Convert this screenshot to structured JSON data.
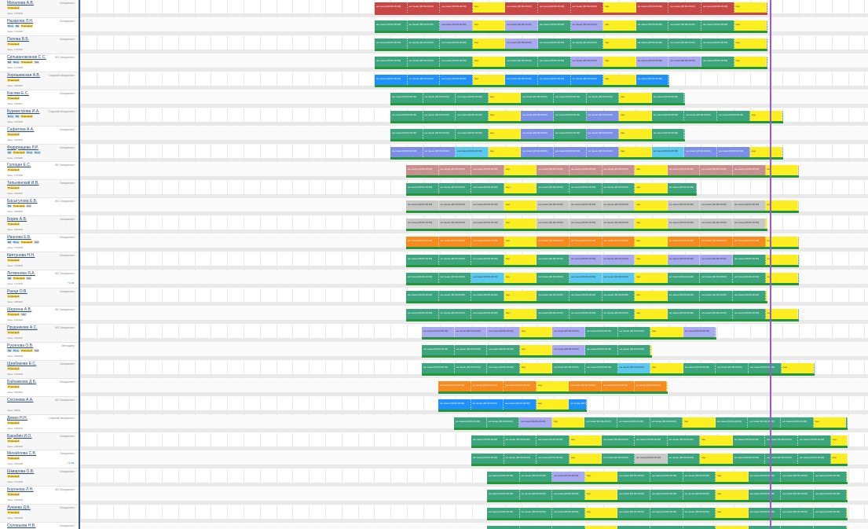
{
  "colors": {
    "green": "#3da57e",
    "green_dark": "#23963a",
    "red": "#c94646",
    "yellow": "#fcee21",
    "lavender": "#a8a9f0",
    "periwinkle": "#7b8fe6",
    "blue": "#1e90ff",
    "cyan": "#5bc8f0",
    "rose": "#c98f8f",
    "gray": "#c8c8c8",
    "orange": "#f98b1e",
    "navy": "#1818c8",
    "now_line": "#9b59d0"
  },
  "employees": [
    {
      "name": "Михалева А.В.",
      "role": "Специалист",
      "tags": [
        "Плановый"
      ],
      "sub": "Часы: 176/169"
    },
    {
      "name": "Назарова Л.Н.",
      "role": "Специалист",
      "tags": [
        "Вход",
        "ВД",
        "Плановый"
      ],
      "sub": "Часы: 174/168"
    },
    {
      "name": "Попова В.Б.",
      "role": "Специалист",
      "tags": [
        "Плановый"
      ],
      "sub": "Часы: 176/169"
    },
    {
      "name": "Сильвановскная С.С.",
      "role": "ИО Специалист",
      "tags": [
        "ВД",
        "Вход",
        "Плановый",
        "Час"
      ],
      "sub": "Часы: 171/168"
    },
    {
      "name": "Хорошевская А.В.",
      "role": "Старший специалист",
      "tags": [
        "Плановый"
      ],
      "sub": "Часы: 168/160"
    },
    {
      "name": "Басова Е.С.",
      "role": "Специалист",
      "tags": [
        "Плановый"
      ],
      "sub": "Часы: 168/167"
    },
    {
      "name": "Бурмистрова И.А.",
      "role": "Старший специалист",
      "tags": [
        "Вход",
        "ВД",
        "Плановый"
      ],
      "sub": "Часы: 170/168"
    },
    {
      "name": "Сафатова А.А.",
      "role": "Специалист",
      "tags": [
        "Плановый"
      ],
      "sub": "Часы: 166/160"
    },
    {
      "name": "Федорищева Л.Р.",
      "role": "Специалист",
      "tags": [
        "ВД",
        "Плановый",
        "Вход",
        "Вход"
      ],
      "sub": "Часы: 170/168"
    },
    {
      "name": "Голоцан Е.С.",
      "role": "ИО Специалист",
      "tags": [
        "Плановый"
      ],
      "sub": "Часы: 175/168"
    },
    {
      "name": "Тельнянский И.В.",
      "role": "Специалист",
      "tags": [
        "Плановый"
      ],
      "sub": "Часы: 160/159"
    },
    {
      "name": "Басыгулова Е.В.",
      "role": "ИО Специалист",
      "tags": [
        "ВД",
        "Плановый",
        "Час"
      ],
      "sub": "Часы: 168/166"
    },
    {
      "name": "Борин А.В.",
      "role": "Специалист",
      "tags": [
        "Плановый"
      ],
      "sub": "Часы: 168/168"
    },
    {
      "name": "Иванова Е.Б.",
      "role": "Специалист",
      "tags": [
        "ВД",
        "Вход",
        "Плановый",
        "Час"
      ],
      "sub": "Часы: 170/168"
    },
    {
      "name": "Квятунова Н.Н.",
      "role": "Специалист",
      "tags": [
        "Плановый"
      ],
      "sub": "Часы: 170/168"
    },
    {
      "name": "Литвинова Я.А.",
      "role": "ИО Специалист",
      "tags": [
        "ВД",
        "Плановый",
        "Час"
      ],
      "sub": "Часы: 171/169",
      "more": "+1 св."
    },
    {
      "name": "Раецн О.В.",
      "role": "Специалист",
      "tags": [
        "Плановый"
      ],
      "sub": "Часы: 168/168"
    },
    {
      "name": "Шкурина А.В.",
      "role": "ИО Специалист",
      "tags": [
        "Плановый",
        "Час"
      ],
      "sub": "Часы: 162/160"
    },
    {
      "name": "Прудникова А.С.",
      "role": "ИО Специалист",
      "tags": [
        "Плановый"
      ],
      "sub": "Часы: 166/166"
    },
    {
      "name": "Русинова О.В.",
      "role": "Менеджер",
      "tags": [
        "ВД",
        "Вход",
        "Плановый",
        "Час"
      ],
      "sub": "Часы: 168/168"
    },
    {
      "name": "Щербакова Е.С.",
      "role": "Специалист",
      "tags": [
        "Плановый"
      ],
      "sub": "Часы: 170/168"
    },
    {
      "name": "Байзаккова Д.Б.",
      "role": "Специалист",
      "tags": [
        "Плановый"
      ],
      "sub": "Часы: 150/152"
    },
    {
      "name": "Сосонова А.А.",
      "role": "ИО Специалист",
      "tags": [],
      "sub": "Часы: 96/96"
    },
    {
      "name": "Демко Н.Н.",
      "role": "Старший специалист",
      "tags": [
        "Плановый"
      ],
      "sub": "Часы: 168/166"
    },
    {
      "name": "Барабин И.О.",
      "role": "Специалист",
      "tags": [
        "Плановый"
      ],
      "sub": "Часы: 168/168"
    },
    {
      "name": "Михайлова С.В.",
      "role": "Специалист",
      "tags": [
        "Плановый"
      ],
      "sub": "Часы: 166/168",
      "more": "+1 св."
    },
    {
      "name": "Шкварова О.В.",
      "role": "Специалист",
      "tags": [
        "Плановый"
      ],
      "sub": "Часы: 172/168"
    },
    {
      "name": "Боронова Л.Н.",
      "role": "ИО Специалист",
      "tags": [
        "Плановый"
      ],
      "sub": "Часы: 168/168"
    },
    {
      "name": "Лукаева Д.Б.",
      "role": "Специалист",
      "tags": [
        "Плановый"
      ],
      "sub": "Часы: 168/168"
    },
    {
      "name": "Соловьева Н.В.",
      "role": "Специалист",
      "tags": [
        "Плановый"
      ],
      "sub": "Часы: 168/168"
    }
  ],
  "shift_label": "на линии [00:00-00:00]",
  "pause_label": "пер.",
  "rows": [
    {
      "start": 375,
      "end": 875,
      "base": "red",
      "under": "red_under",
      "mix": []
    },
    {
      "start": 375,
      "end": 875,
      "base": "green",
      "mix": [
        [
          "lavender",
          420,
          480
        ],
        [
          "lavender",
          500,
          580
        ],
        [
          "lavender",
          605,
          655
        ]
      ]
    },
    {
      "start": 375,
      "end": 875,
      "base": "green",
      "mix": [
        [
          "lavender",
          540,
          565
        ]
      ]
    },
    {
      "start": 375,
      "end": 875,
      "base": "green",
      "mix": [
        [
          "lavender",
          610,
          660
        ],
        [
          "lavender",
          705,
          790
        ]
      ]
    },
    {
      "start": 375,
      "end": 750,
      "base": "blue",
      "mix": []
    },
    {
      "start": 395,
      "end": 770,
      "base": "green",
      "mix": []
    },
    {
      "start": 395,
      "end": 895,
      "base": "green",
      "mix": [
        [
          "periwinkle",
          540,
          580
        ],
        [
          "periwinkle",
          620,
          705
        ]
      ]
    },
    {
      "start": 395,
      "end": 770,
      "base": "green",
      "mix": [
        [
          "periwinkle",
          560,
          600
        ],
        [
          "periwinkle",
          620,
          700
        ]
      ]
    },
    {
      "start": 395,
      "end": 895,
      "base": "periwinkle",
      "mix": [
        [
          "cyan",
          440,
          500
        ],
        [
          "cyan",
          705,
          745
        ]
      ]
    },
    {
      "start": 415,
      "end": 915,
      "base": "rose",
      "mix": []
    },
    {
      "start": 415,
      "end": 785,
      "base": "green",
      "mix": []
    },
    {
      "start": 415,
      "end": 915,
      "base": "gray",
      "mix": []
    },
    {
      "start": 415,
      "end": 875,
      "base": "gray",
      "mix": []
    },
    {
      "start": 415,
      "end": 915,
      "base": "orange",
      "mix": []
    },
    {
      "start": 415,
      "end": 915,
      "base": "green",
      "mix": [
        [
          "lavender",
          620,
          700
        ],
        [
          "lavender",
          720,
          790
        ]
      ]
    },
    {
      "start": 415,
      "end": 915,
      "base": "green",
      "mix": [
        [
          "cyan",
          460,
          505
        ],
        [
          "cyan",
          620,
          710
        ]
      ]
    },
    {
      "start": 415,
      "end": 875,
      "base": "green",
      "mix": []
    },
    {
      "start": 415,
      "end": 915,
      "base": "green",
      "mix": []
    },
    {
      "start": 435,
      "end": 810,
      "base": "lavender",
      "mix": [
        [
          "green",
          640,
          705
        ]
      ]
    },
    {
      "start": 435,
      "end": 728,
      "base": "green",
      "mix": [
        [
          "lavender",
          590,
          640
        ]
      ]
    },
    {
      "start": 435,
      "end": 935,
      "base": "green",
      "mix": [
        [
          "cyan",
          650,
          750
        ]
      ]
    },
    {
      "start": 456,
      "end": 748,
      "base": "orange",
      "mix": []
    },
    {
      "start": 456,
      "end": 645,
      "base": "blue",
      "mix": []
    },
    {
      "start": 476,
      "end": 977,
      "base": "green",
      "mix": [
        [
          "lavender",
          540,
          585
        ]
      ]
    },
    {
      "start": 498,
      "end": 977,
      "base": "green",
      "mix": [
        [
          "gray",
          750,
          790
        ]
      ]
    },
    {
      "start": 498,
      "end": 977,
      "base": "green",
      "mix": [
        [
          "gray",
          690,
          740
        ]
      ]
    },
    {
      "start": 518,
      "end": 977,
      "base": "green",
      "mix": [
        [
          "lavender",
          570,
          610
        ]
      ]
    },
    {
      "start": 518,
      "end": 977,
      "base": "green",
      "mix": []
    },
    {
      "start": 518,
      "end": 977,
      "base": "green",
      "mix": [
        [
          "gray",
          620,
          660
        ]
      ]
    },
    {
      "start": 518,
      "end": 977,
      "base": "green",
      "mix": []
    }
  ]
}
